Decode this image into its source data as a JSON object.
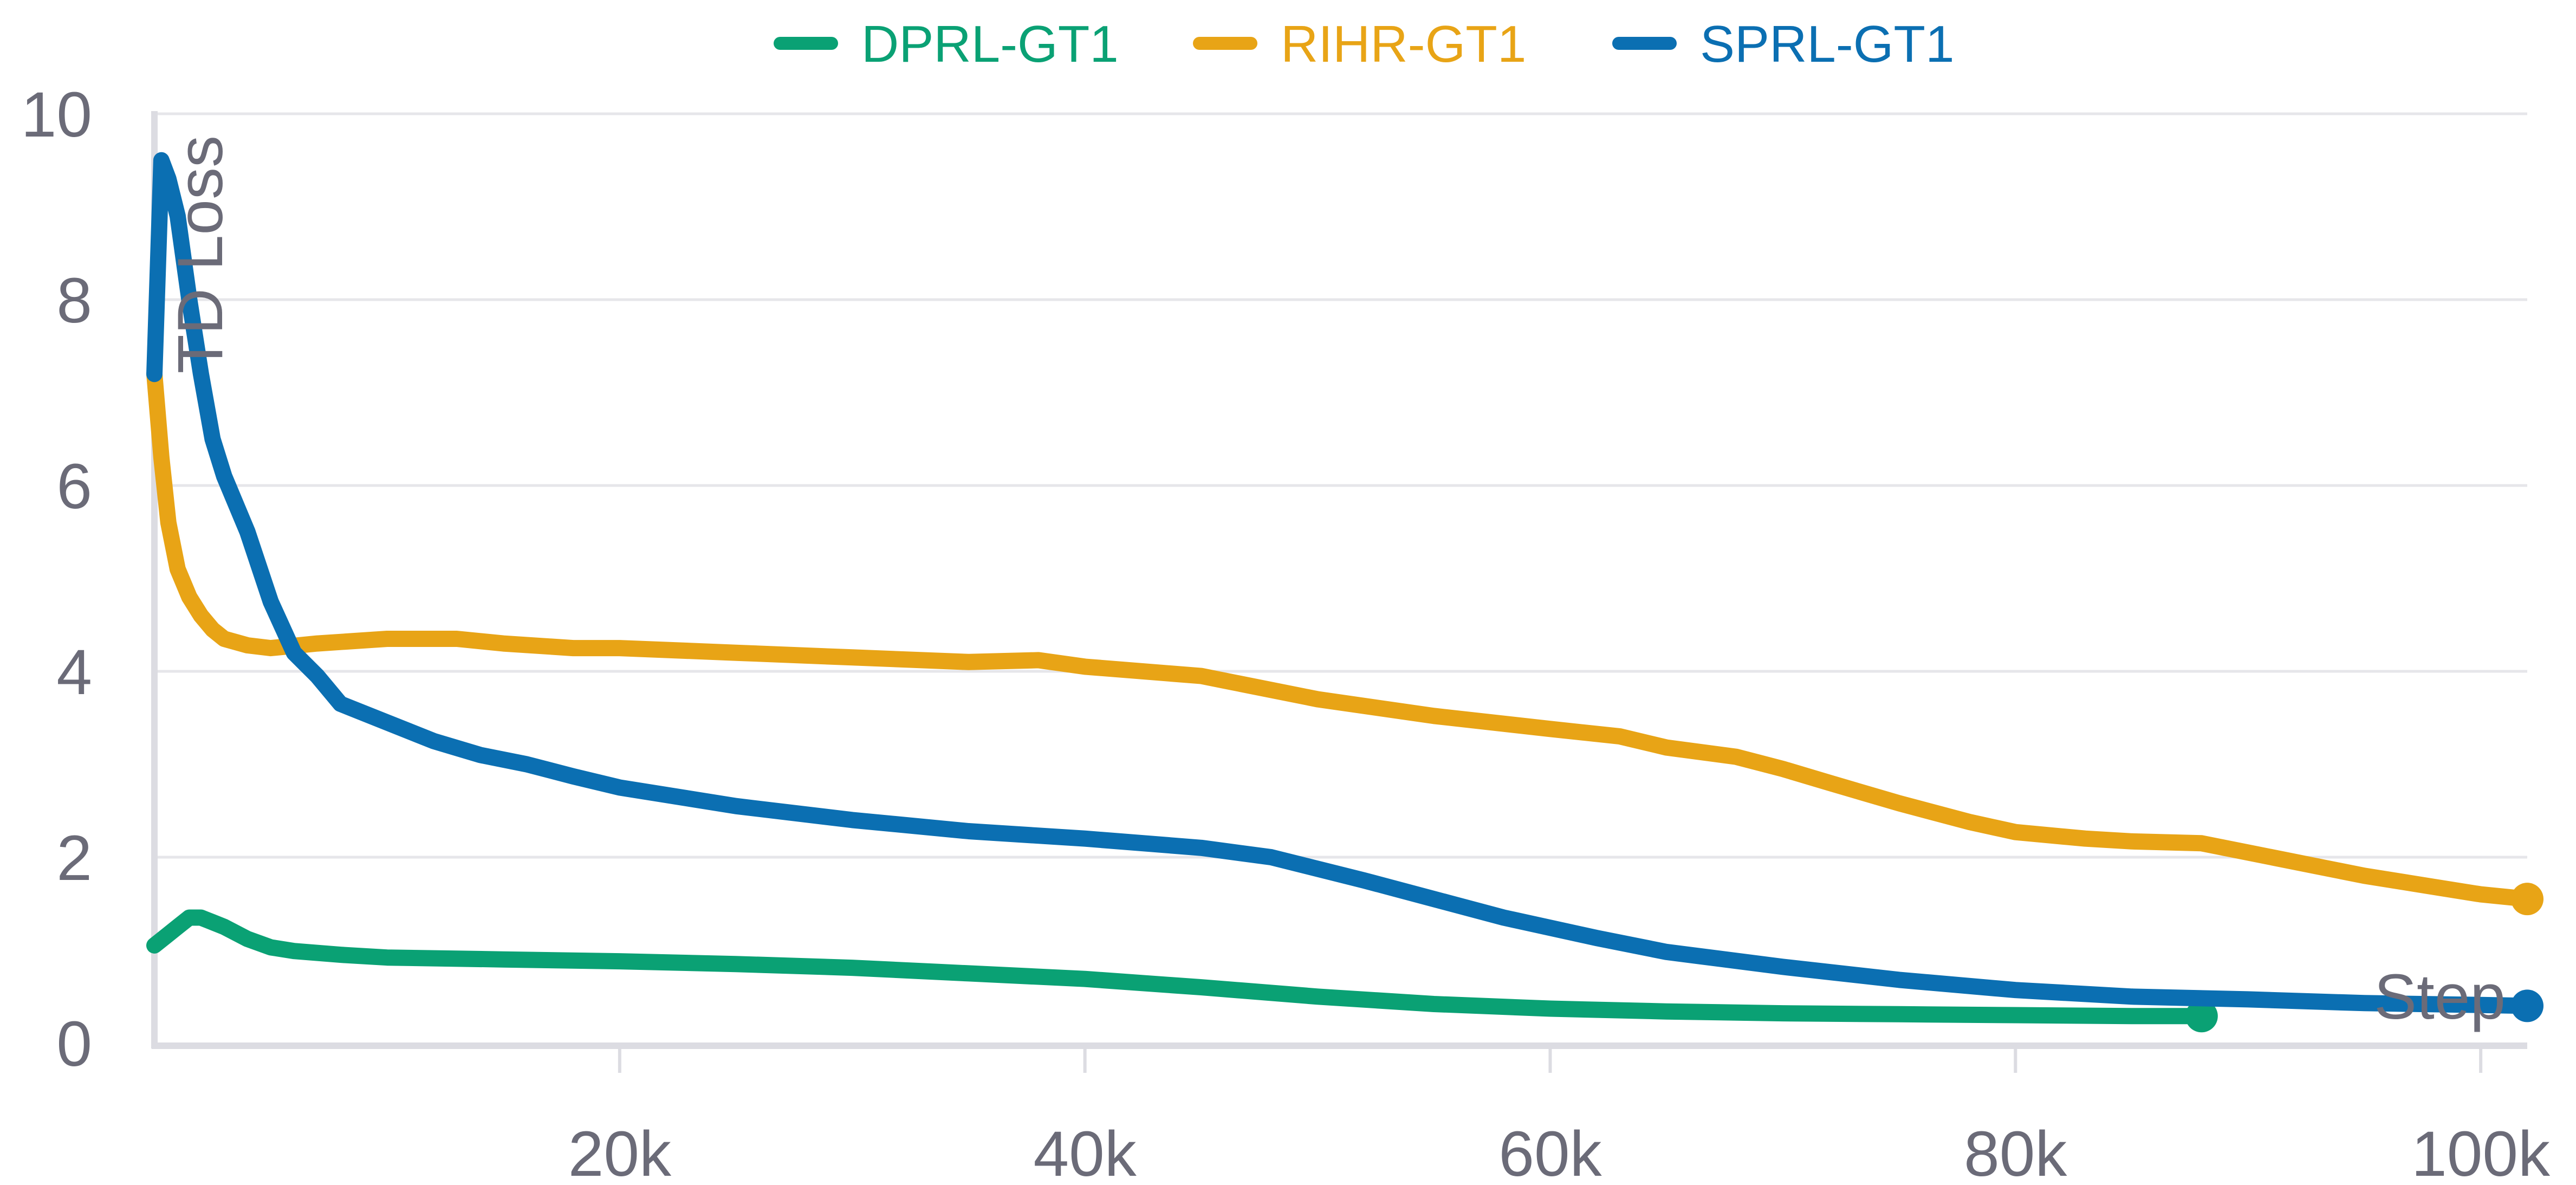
{
  "chart_data": {
    "type": "line",
    "title": "",
    "xlabel": "Step",
    "ylabel": "TD Loss",
    "xlim": [
      0,
      102000
    ],
    "ylim": [
      0,
      10
    ],
    "x_ticks": [
      {
        "value": 20000,
        "label": "20k"
      },
      {
        "value": 40000,
        "label": "40k"
      },
      {
        "value": 60000,
        "label": "60k"
      },
      {
        "value": 80000,
        "label": "80k"
      },
      {
        "value": 100000,
        "label": "100k"
      }
    ],
    "y_ticks": [
      {
        "value": 0,
        "label": "0"
      },
      {
        "value": 2,
        "label": "2"
      },
      {
        "value": 4,
        "label": "4"
      },
      {
        "value": 6,
        "label": "6"
      },
      {
        "value": 8,
        "label": "8"
      },
      {
        "value": 10,
        "label": "10"
      }
    ],
    "grid": true,
    "legend_position": "top-center",
    "series": [
      {
        "name": "DPRL-GT1",
        "color": "#0aa174",
        "end_marker": true,
        "x": [
          0,
          500,
          1000,
          1500,
          2000,
          2500,
          3000,
          4000,
          5000,
          6000,
          8000,
          10000,
          15000,
          20000,
          25000,
          30000,
          35000,
          40000,
          45000,
          50000,
          55000,
          60000,
          65000,
          70000,
          75000,
          80000,
          85000,
          88000
        ],
        "y": [
          1.05,
          1.15,
          1.25,
          1.35,
          1.35,
          1.3,
          1.25,
          1.12,
          1.03,
          0.99,
          0.95,
          0.92,
          0.9,
          0.88,
          0.85,
          0.81,
          0.75,
          0.69,
          0.6,
          0.5,
          0.42,
          0.37,
          0.34,
          0.32,
          0.31,
          0.3,
          0.29,
          0.29
        ]
      },
      {
        "name": "RIHR-GT1",
        "color": "#e8a416",
        "end_marker": true,
        "x": [
          0,
          300,
          600,
          1000,
          1500,
          2000,
          2500,
          3000,
          4000,
          5000,
          7000,
          10000,
          13000,
          15000,
          18000,
          20000,
          25000,
          30000,
          35000,
          38000,
          40000,
          45000,
          50000,
          55000,
          60000,
          63000,
          65000,
          68000,
          70000,
          72000,
          75000,
          78000,
          80000,
          83000,
          85000,
          88000,
          90000,
          93000,
          95000,
          98000,
          100000,
          102000
        ],
        "y": [
          7.2,
          6.3,
          5.6,
          5.1,
          4.8,
          4.6,
          4.45,
          4.35,
          4.28,
          4.25,
          4.3,
          4.35,
          4.35,
          4.3,
          4.25,
          4.25,
          4.2,
          4.15,
          4.1,
          4.12,
          4.05,
          3.95,
          3.7,
          3.52,
          3.38,
          3.3,
          3.18,
          3.08,
          2.95,
          2.8,
          2.58,
          2.38,
          2.27,
          2.2,
          2.17,
          2.15,
          2.05,
          1.9,
          1.8,
          1.68,
          1.6,
          1.55
        ]
      },
      {
        "name": "SPRL-GT1",
        "color": "#0b6fb2",
        "end_marker": true,
        "x": [
          0,
          300,
          600,
          1000,
          1500,
          2000,
          2500,
          3000,
          4000,
          5000,
          6000,
          7000,
          8000,
          10000,
          12000,
          14000,
          16000,
          18000,
          20000,
          25000,
          30000,
          35000,
          40000,
          45000,
          48000,
          52000,
          55000,
          58000,
          62000,
          65000,
          70000,
          75000,
          80000,
          85000,
          90000,
          95000,
          100000,
          102000
        ],
        "y": [
          7.2,
          9.5,
          9.3,
          8.9,
          8.0,
          7.2,
          6.5,
          6.1,
          5.5,
          4.75,
          4.2,
          3.95,
          3.65,
          3.45,
          3.25,
          3.1,
          3.0,
          2.87,
          2.75,
          2.55,
          2.4,
          2.28,
          2.2,
          2.1,
          2.0,
          1.75,
          1.55,
          1.35,
          1.13,
          0.98,
          0.82,
          0.68,
          0.57,
          0.5,
          0.47,
          0.43,
          0.41,
          0.4
        ]
      }
    ]
  }
}
